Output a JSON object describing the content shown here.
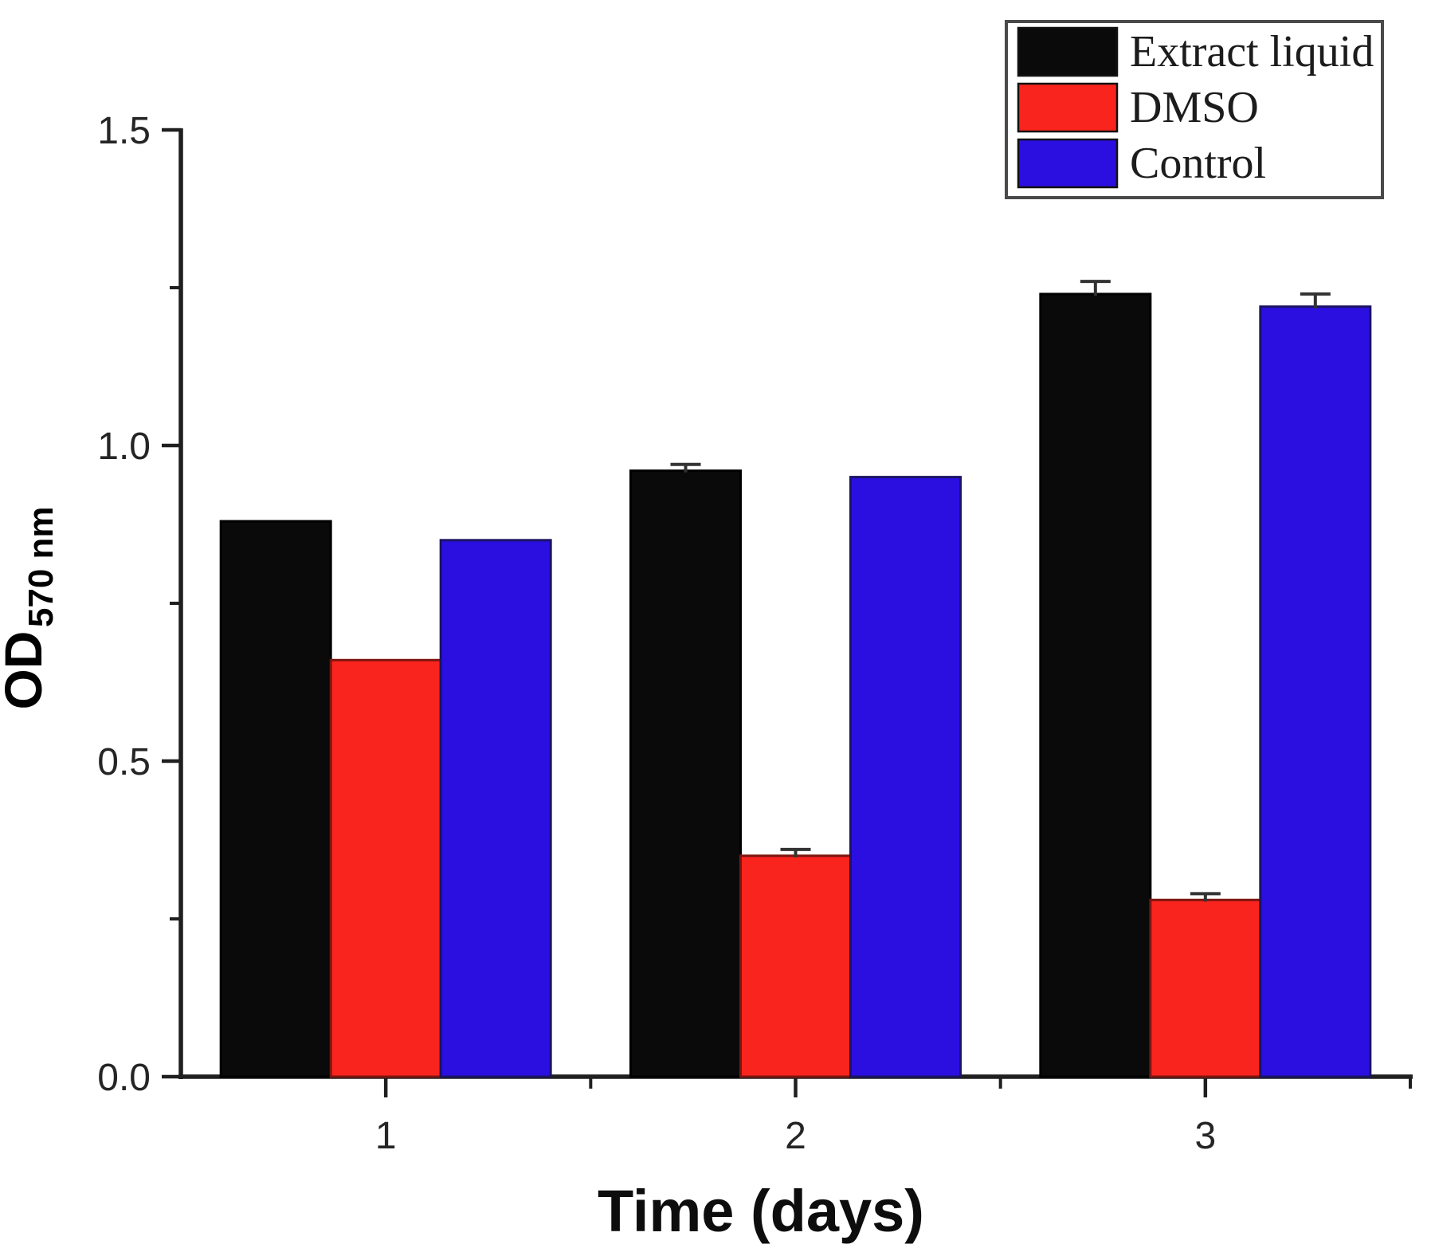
{
  "chart_data": {
    "type": "bar",
    "title": "",
    "xlabel": "Time (days)",
    "ylabel": "OD",
    "ylabel_subscript": "570 nm",
    "categories": [
      "1",
      "2",
      "3"
    ],
    "series": [
      {
        "name": "Extract liquid",
        "color": "#0a0a0a",
        "border_color": "#000000",
        "values": [
          0.88,
          0.96,
          1.24
        ],
        "errors_plus": [
          0,
          0.01,
          0.02
        ]
      },
      {
        "name": "DMSO",
        "color": "#f9241e",
        "border_color": "#7d1510",
        "values": [
          0.66,
          0.35,
          0.28
        ],
        "errors_plus": [
          0,
          0.01,
          0.01
        ]
      },
      {
        "name": "Control",
        "color": "#2b0fe0",
        "border_color": "#1b1464",
        "values": [
          0.85,
          0.95,
          1.22
        ],
        "errors_plus": [
          0,
          0,
          0.02
        ]
      }
    ],
    "ylim": [
      0.0,
      1.5
    ],
    "y_major_tick_labels": [
      "0.0",
      "0.5",
      "1.0",
      "1.5"
    ],
    "y_minor_ticks": [
      0.25,
      0.75,
      1.25
    ],
    "x_minor_ticks_between_categories": true,
    "grid": false,
    "legend": {
      "position": "top-right",
      "entries": [
        "Extract liquid",
        "DMSO",
        "Control"
      ]
    },
    "error_bar_color": "#333333",
    "axis_color": "#1f1f1f",
    "background": "#ffffff"
  }
}
